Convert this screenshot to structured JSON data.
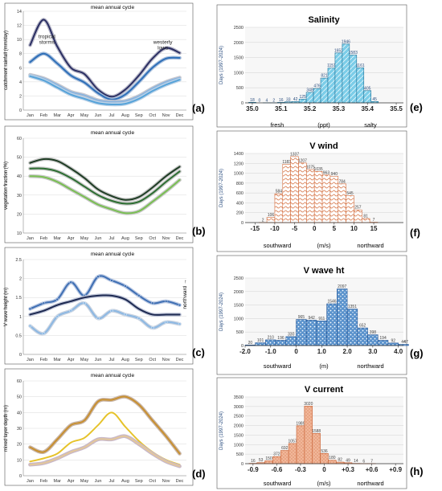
{
  "panel_labels": [
    "(a)",
    "(b)",
    "(c)",
    "(d)",
    "(e)",
    "(f)",
    "(g)",
    "(h)"
  ],
  "chart_data": [
    {
      "id": "a",
      "type": "line",
      "title": "mean annual cycle",
      "ylabel": "catchment rainfall (mm/day)",
      "categories": [
        "Jan",
        "Feb",
        "Mar",
        "Apr",
        "May",
        "Jun",
        "Jul",
        "Aug",
        "Sep",
        "Oct",
        "Nov",
        "Dec"
      ],
      "ylim": [
        0,
        14
      ],
      "yticks": [
        0,
        2,
        4,
        6,
        8,
        10,
        12,
        14
      ],
      "annotations": [
        {
          "lines": [
            "tropical",
            "storms"
          ],
          "at": [
            "Feb",
            10.2
          ]
        },
        {
          "lines": [
            "westerly",
            "lows"
          ],
          "at": [
            "Nov",
            9.4
          ]
        }
      ],
      "series": [
        {
          "color": "#2b2f63",
          "halo": "#b9b9c9",
          "values": [
            9.2,
            12.8,
            9.0,
            6.0,
            5.1,
            2.9,
            1.9,
            2.9,
            4.9,
            7.3,
            8.8,
            8.1
          ]
        },
        {
          "color": "#2f6fb8",
          "halo": "#a9c0dd",
          "values": [
            6.8,
            8.0,
            6.6,
            4.9,
            3.9,
            2.4,
            1.5,
            2.2,
            4.0,
            6.0,
            7.3,
            7.4
          ]
        },
        {
          "color": "#8bb4de",
          "halo": "#c9c9cf",
          "values": [
            5.0,
            4.5,
            3.6,
            2.6,
            2.1,
            1.4,
            1.2,
            1.3,
            2.0,
            3.1,
            4.0,
            4.6
          ]
        },
        {
          "color": "#56a3d9",
          "halo": "#bcd3e8",
          "values": [
            4.8,
            4.2,
            3.2,
            2.2,
            1.6,
            1.0,
            0.8,
            0.9,
            1.6,
            2.7,
            3.6,
            4.3
          ]
        }
      ]
    },
    {
      "id": "b",
      "type": "line",
      "title": "mean annual cycle",
      "ylabel": "vegetation fraction (%)",
      "categories": [
        "Jan",
        "Feb",
        "Mar",
        "Apr",
        "May",
        "Jun",
        "Jul",
        "Aug",
        "Sep",
        "Oct",
        "Nov",
        "Dec"
      ],
      "ylim": [
        0.1,
        0.6
      ],
      "yticks": [
        0.1,
        0.2,
        0.3,
        0.4,
        0.5,
        0.6
      ],
      "ytick_labels": [
        "10",
        "20",
        "30",
        "40",
        "50",
        "60"
      ],
      "series": [
        {
          "color": "#1f3d25",
          "halo": "#c8c8c8",
          "values": [
            0.47,
            0.49,
            0.48,
            0.44,
            0.39,
            0.33,
            0.295,
            0.275,
            0.29,
            0.34,
            0.4,
            0.45
          ]
        },
        {
          "color": "#2c6e31",
          "halo": "#c8c8c8",
          "values": [
            0.44,
            0.44,
            0.425,
            0.39,
            0.345,
            0.3,
            0.27,
            0.255,
            0.265,
            0.31,
            0.37,
            0.425
          ]
        },
        {
          "color": "#79bf52",
          "halo": "#c8c8c8",
          "values": [
            0.4,
            0.395,
            0.37,
            0.33,
            0.29,
            0.25,
            0.225,
            0.205,
            0.215,
            0.265,
            0.32,
            0.38
          ]
        }
      ]
    },
    {
      "id": "c",
      "type": "line",
      "title": "mean annual cycle",
      "ylabel": "V wave height (m)",
      "side_label": "northward →",
      "categories": [
        "Jan",
        "Feb",
        "Mar",
        "Apr",
        "May",
        "Jun",
        "Jul",
        "Aug",
        "Sep",
        "Oct",
        "Nov",
        "Dec"
      ],
      "ylim": [
        0,
        2.5
      ],
      "yticks": [
        0,
        0.5,
        1.0,
        1.5,
        2.0,
        2.5
      ],
      "ytick_labels": [
        "0",
        "0.5",
        "1",
        "1.5",
        "2",
        "2.5"
      ],
      "series": [
        {
          "color": "#3f6fb3",
          "halo": "#b9c8e3",
          "markers": true,
          "values": [
            1.2,
            1.35,
            1.45,
            1.9,
            1.55,
            2.05,
            1.95,
            1.8,
            1.55,
            1.35,
            1.4,
            1.3
          ]
        },
        {
          "color": "#1d2951",
          "halo": "#c0c6d8",
          "markers": false,
          "values": [
            1.05,
            1.15,
            1.3,
            1.4,
            1.5,
            1.55,
            1.55,
            1.45,
            1.2,
            1.05,
            1.05,
            1.05
          ]
        },
        {
          "color": "#8cb8e3",
          "halo": "#c8d2e0",
          "markers": true,
          "values": [
            0.75,
            0.55,
            1.0,
            1.15,
            1.35,
            0.95,
            1.15,
            1.05,
            0.95,
            0.7,
            0.85,
            0.8
          ]
        }
      ]
    },
    {
      "id": "d",
      "type": "line",
      "title": "mean annual cycle",
      "ylabel": "mixed layer depth (m)",
      "categories": [
        "Jan",
        "Feb",
        "Mar",
        "Apr",
        "May",
        "Jun",
        "Jul",
        "Aug",
        "Sep",
        "Oct",
        "Nov",
        "Dec"
      ],
      "ylim": [
        0,
        60
      ],
      "yticks": [
        0,
        10,
        20,
        30,
        40,
        50,
        60
      ],
      "series": [
        {
          "color": "#c8902f",
          "halo": "#c8b5a8",
          "values": [
            18,
            15,
            23,
            32,
            35,
            47,
            48,
            50,
            45,
            35,
            25,
            14
          ]
        },
        {
          "color": "#e6c32b",
          "halo": "#ffffff",
          "values": [
            9,
            11,
            14,
            21,
            24,
            32,
            40,
            31,
            22,
            15,
            10,
            7
          ]
        },
        {
          "color": "#e3c79a",
          "halo": "#c8b8c9",
          "values": [
            7,
            8,
            11,
            15,
            18,
            23,
            23,
            25,
            20,
            14,
            9,
            6
          ]
        }
      ]
    },
    {
      "id": "e",
      "type": "bar",
      "title": "Salinity",
      "ylabel": "Days (1997-2024)",
      "ylim": [
        0,
        2500
      ],
      "yticks": [
        0,
        500,
        1000,
        1500,
        2000,
        2500
      ],
      "xlim": [
        34.975,
        35.525
      ],
      "xticks": [
        35.0,
        35.1,
        35.2,
        35.3,
        35.4,
        35.5
      ],
      "xtick_labels": [
        "35.0",
        "35.1",
        "35.2",
        "35.3",
        "35.4",
        "35.5"
      ],
      "xlabel": "(ppt)",
      "xlabel_left": "fresh",
      "xlabel_right": "salty",
      "bin_width": 0.025,
      "fill": "#7ccde8",
      "stroke": "#1c6e95",
      "label_color": "#2a4d7f",
      "x": [
        35.0,
        35.025,
        35.05,
        35.075,
        35.1,
        35.125,
        35.15,
        35.175,
        35.2,
        35.225,
        35.25,
        35.275,
        35.3,
        35.325,
        35.35,
        35.375,
        35.4,
        35.425,
        35.45,
        35.475,
        35.5
      ],
      "values": [
        18,
        0,
        4,
        2,
        16,
        33,
        42,
        125,
        348,
        476,
        821,
        1151,
        1652,
        1946,
        1583,
        1161,
        405,
        45,
        0,
        0,
        0
      ],
      "labels": [
        "18",
        "0",
        "4",
        "2",
        "16",
        "33",
        "42",
        "125",
        "348",
        "476",
        "821",
        "1151",
        "1652",
        "1946",
        "1583",
        "1161",
        "405",
        "45",
        "",
        "",
        ""
      ]
    },
    {
      "id": "f",
      "type": "bar",
      "title": "V wind",
      "ylabel": "Days (1997-2024)",
      "ylim": [
        0,
        1400
      ],
      "yticks": [
        0,
        200,
        400,
        600,
        800,
        1000,
        1200,
        1400
      ],
      "xlim": [
        -17.5,
        22.5
      ],
      "xticks": [
        -15,
        -10,
        -5,
        0,
        5,
        10,
        15
      ],
      "xtick_labels": [
        "-15",
        "-10",
        "-5",
        "0",
        "5",
        "10",
        "15"
      ],
      "xlabel": "(m/s)",
      "xlabel_left": "southward",
      "xlabel_right": "northward",
      "bin_width": 2,
      "fill": "#ffffff",
      "stroke": "#d36b3a",
      "label_color": "#444444",
      "x": [
        -15,
        -13,
        -11,
        -9,
        -7,
        -5,
        -3,
        -1,
        1,
        3,
        5,
        7,
        9,
        11,
        13,
        15,
        17,
        19,
        21
      ],
      "values": [
        0,
        2,
        106,
        584,
        1183,
        1337,
        1207,
        1075,
        1035,
        963,
        940,
        784,
        545,
        257,
        81,
        7,
        0,
        0,
        0
      ],
      "labels": [
        "",
        "2",
        "106",
        "584",
        "1183",
        "1337",
        "1207",
        "1075",
        "1035",
        "963",
        "940",
        "784",
        "545",
        "257",
        "81",
        "7",
        "",
        "",
        ""
      ]
    },
    {
      "id": "g",
      "type": "bar",
      "title": "V wave ht",
      "ylabel": "Days (1997-2024)",
      "ylim": [
        0,
        2500
      ],
      "yticks": [
        0,
        500,
        1000,
        1500,
        2000,
        2500
      ],
      "xlim": [
        -2.0,
        4.2
      ],
      "xticks": [
        -2.0,
        -1.0,
        0.0,
        1.0,
        2.0,
        3.0,
        4.0
      ],
      "xtick_labels": [
        "-2.0",
        "-1.0",
        "0",
        "1.0",
        "2.0",
        "3.0",
        "4.0"
      ],
      "xlabel": "(m)",
      "xlabel_left": "southward",
      "xlabel_right": "northward",
      "bin_width": 0.4,
      "fill": "#5a92cc",
      "stroke": "#1d4f91",
      "label_color": "#444444",
      "x": [
        -1.8,
        -1.4,
        -1.0,
        -0.6,
        -0.2,
        0.2,
        0.6,
        1.0,
        1.4,
        1.8,
        2.2,
        2.6,
        3.0,
        3.4,
        3.8,
        4.2
      ],
      "values": [
        20,
        101,
        210,
        196,
        330,
        965,
        942,
        911,
        1546,
        2097,
        1351,
        652,
        398,
        194,
        92,
        44
      ],
      "labels": [
        "20",
        "101",
        "210",
        "196",
        "330",
        "965",
        "942",
        "911",
        "1546",
        "2097",
        "1351",
        "652",
        "398",
        "194",
        "92",
        "44"
      ],
      "extra_labels": [
        {
          "x": 4.3,
          "value": 47,
          "text": "47"
        }
      ]
    },
    {
      "id": "h",
      "type": "bar",
      "title": "V current",
      "ylabel": "Days (1997-2024)",
      "ylim": [
        0,
        3500
      ],
      "yticks": [
        0,
        500,
        1000,
        1500,
        2000,
        2500,
        3000,
        3500
      ],
      "xlim": [
        -1.0,
        1.0
      ],
      "xticks": [
        -0.9,
        -0.6,
        -0.3,
        0.0,
        0.3,
        0.6,
        0.9
      ],
      "xtick_labels": [
        "-0.9",
        "-0.6",
        "-0.3",
        "0",
        "+0.3",
        "+0.6",
        "+0.9"
      ],
      "xlabel": "(m/s)",
      "xlabel_left": "southward",
      "xlabel_right": "northward",
      "bin_width": 0.1,
      "fill": "#f1b79a",
      "stroke": "#c45a2a",
      "label_color": "#444444",
      "x": [
        -0.9,
        -0.8,
        -0.7,
        -0.6,
        -0.5,
        -0.4,
        -0.3,
        -0.2,
        -0.1,
        0.0,
        0.1,
        0.2,
        0.3,
        0.4,
        0.5,
        0.6,
        0.7,
        0.8,
        0.9
      ],
      "values": [
        16,
        53,
        150,
        372,
        692,
        1057,
        1989,
        3020,
        1588,
        536,
        180,
        82,
        49,
        14,
        6,
        7,
        0,
        0,
        0
      ],
      "labels": [
        "16",
        "53",
        "150",
        "372",
        "692",
        "1057",
        "1989",
        "3020",
        "1588",
        "536",
        "180",
        "82",
        "49",
        "14",
        "6",
        "7",
        "",
        "",
        ""
      ]
    }
  ]
}
